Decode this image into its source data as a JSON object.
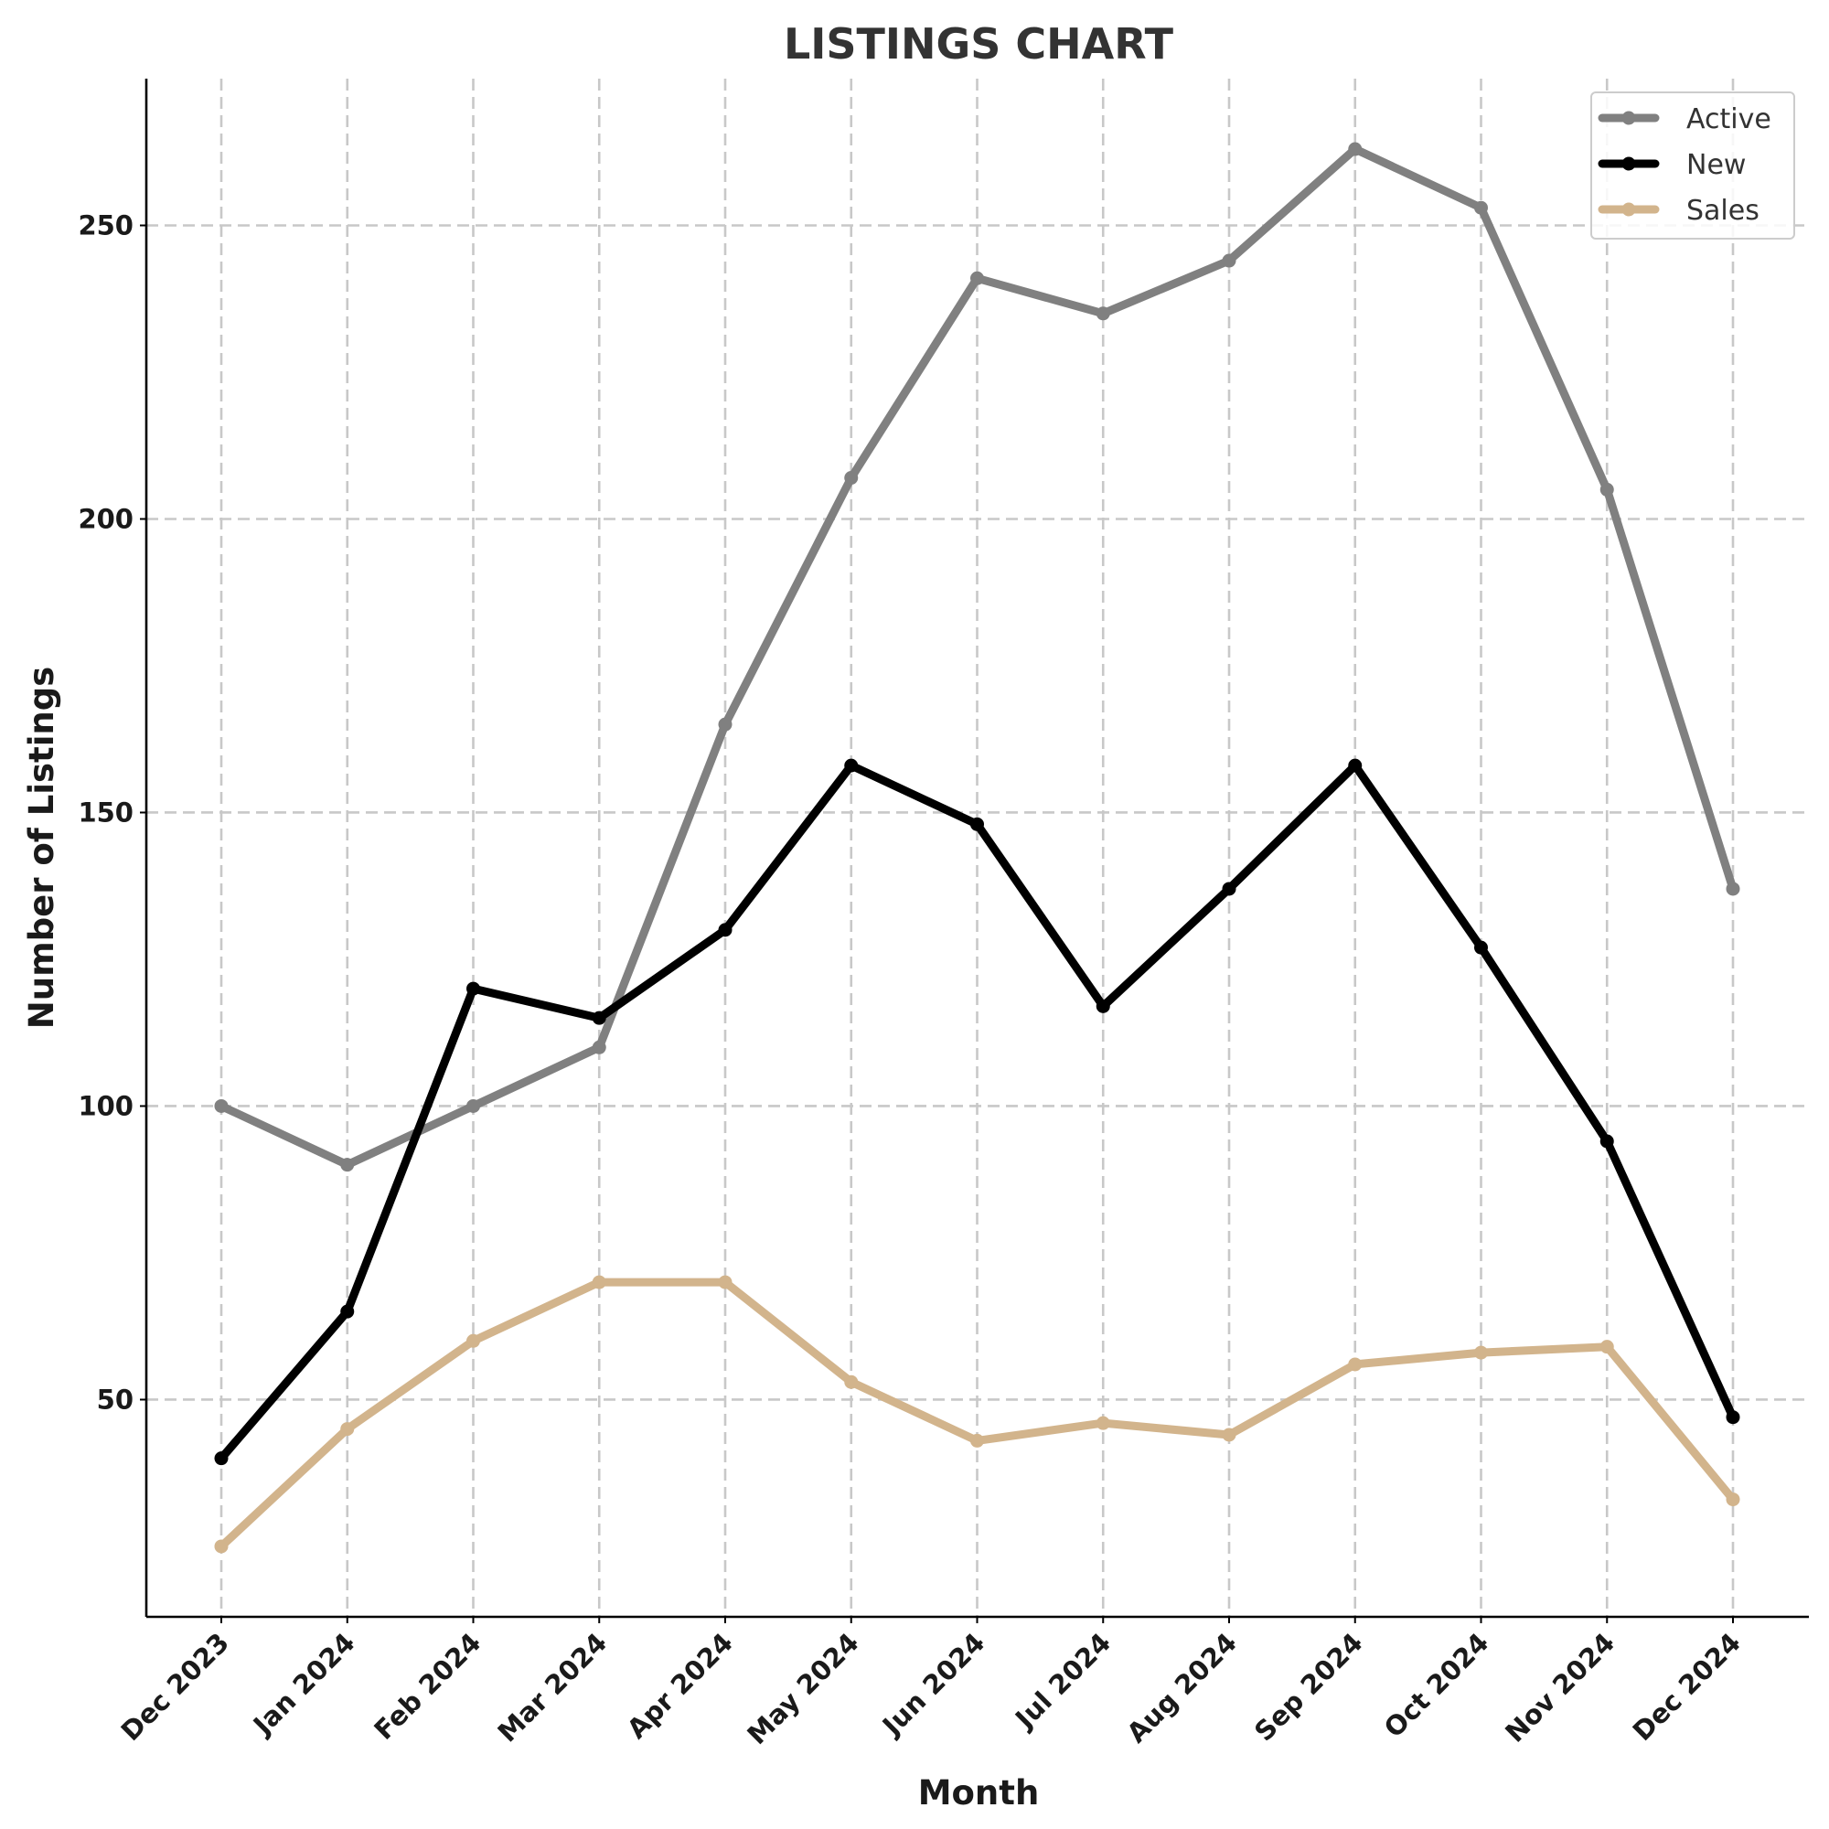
{
  "chart_data": {
    "type": "line",
    "title": "LISTINGS CHART",
    "xlabel": "Month",
    "ylabel": "Number of Listings",
    "categories": [
      "Dec 2023",
      "Jan 2024",
      "Feb 2024",
      "Mar 2024",
      "Apr 2024",
      "May 2024",
      "Jun 2024",
      "Jul 2024",
      "Aug 2024",
      "Sep 2024",
      "Oct 2024",
      "Nov 2024",
      "Dec 2024"
    ],
    "yticks": [
      50,
      100,
      150,
      200,
      250
    ],
    "ylim": [
      13,
      275
    ],
    "grid": true,
    "legend_position": "top-right",
    "series": [
      {
        "name": "Active",
        "color": "#808080",
        "values": [
          100,
          90,
          100,
          110,
          165,
          207,
          241,
          235,
          244,
          263,
          253,
          205,
          137
        ]
      },
      {
        "name": "New",
        "color": "#000000",
        "values": [
          40,
          65,
          120,
          115,
          130,
          158,
          148,
          117,
          137,
          158,
          127,
          94,
          47
        ]
      },
      {
        "name": "Sales",
        "color": "#d2b48c",
        "values": [
          25,
          45,
          60,
          70,
          70,
          53,
          43,
          46,
          44,
          56,
          58,
          59,
          33
        ]
      }
    ]
  }
}
